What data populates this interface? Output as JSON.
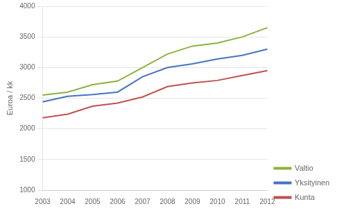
{
  "chart_data": {
    "type": "line",
    "categories": [
      "2003",
      "2004",
      "2005",
      "2006",
      "2007",
      "2008",
      "2009",
      "2010",
      "2011",
      "2012"
    ],
    "series": [
      {
        "name": "Valtio",
        "color": "#8DB33A",
        "values": [
          2550,
          2600,
          2720,
          2780,
          3000,
          3220,
          3350,
          3400,
          3500,
          3650
        ]
      },
      {
        "name": "Yksityinen",
        "color": "#4472C4",
        "values": [
          2440,
          2530,
          2560,
          2600,
          2850,
          3000,
          3060,
          3140,
          3200,
          3300
        ]
      },
      {
        "name": "Kunta",
        "color": "#C0504D",
        "values": [
          2180,
          2240,
          2370,
          2420,
          2520,
          2690,
          2750,
          2790,
          2870,
          2950
        ]
      }
    ],
    "ylabel": "Euroa / kk",
    "ylim": [
      1000,
      4000
    ],
    "yticks": [
      1000,
      1500,
      2000,
      2500,
      3000,
      3500,
      4000
    ],
    "grid": true,
    "legend": "lower right"
  }
}
